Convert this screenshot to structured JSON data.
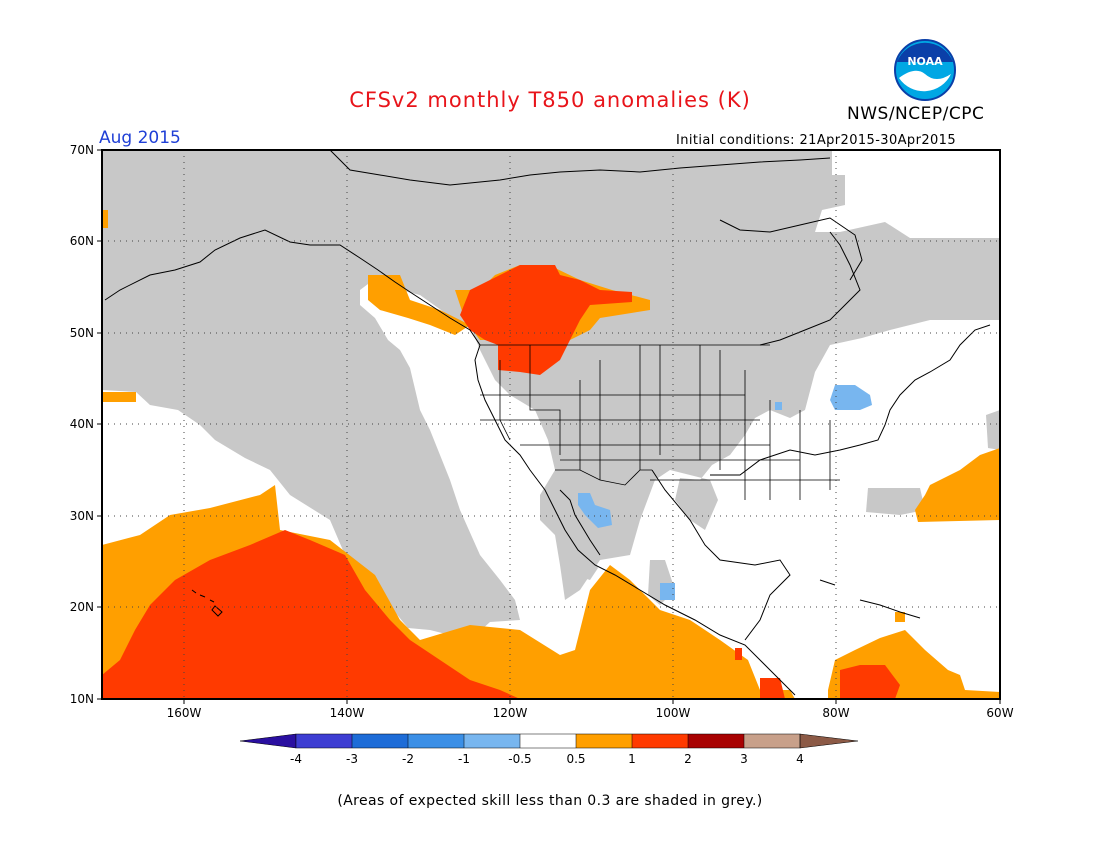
{
  "title": "CFSv2 monthly T850 anomalies (K)",
  "agency": "NWS/NCEP/CPC",
  "logo_text": "NOAA",
  "forecast_month": "Aug 2015",
  "initial_conditions": "Initial conditions: 21Apr2015-30Apr2015",
  "footer_note": "(Areas of expected skill less than 0.3 are shaded in grey.)",
  "map": {
    "lon_range": [
      -170,
      -60
    ],
    "lat_range": [
      10,
      70
    ],
    "lat_labels": [
      "70N",
      "60N",
      "50N",
      "40N",
      "30N",
      "20N",
      "10N"
    ],
    "lon_labels": [
      "160W",
      "140W",
      "120W",
      "100W",
      "80W",
      "60W"
    ]
  },
  "legend": {
    "ticks": [
      "-4",
      "-3",
      "-2",
      "-1",
      "-0.5",
      "0.5",
      "1",
      "2",
      "3",
      "4"
    ],
    "colors": [
      "#2a0fa0",
      "#3d3dd2",
      "#1d6cd7",
      "#3b8fe6",
      "#78b6ef",
      "#ffffff",
      "#ff9f00",
      "#ff3a00",
      "#a80202",
      "#c8a08a",
      "#8c5a46"
    ],
    "low_skill_color": "#c8c8c8"
  }
}
